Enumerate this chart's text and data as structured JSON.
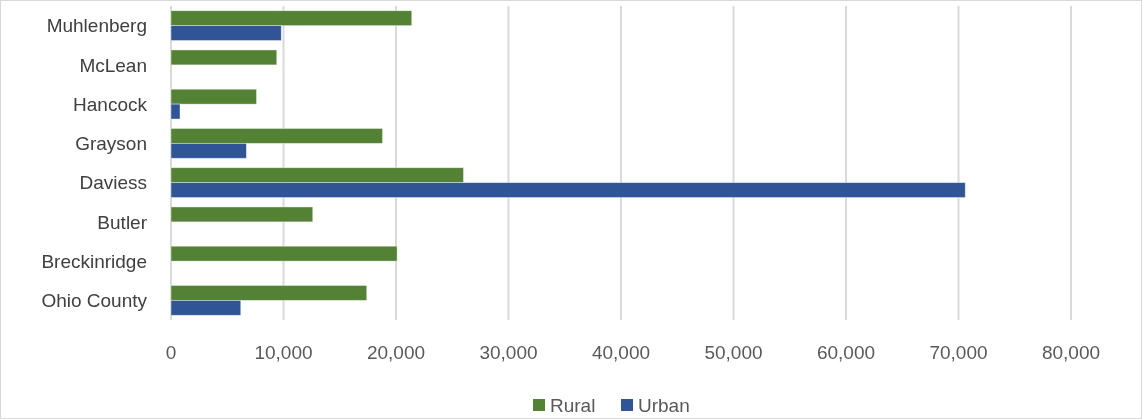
{
  "chart_data": {
    "type": "bar",
    "orientation": "horizontal",
    "categories": [
      "Muhlenberg",
      "McLean",
      "Hancock",
      "Grayson",
      "Daviess",
      "Butler",
      "Breckinridge",
      "Ohio County"
    ],
    "series": [
      {
        "name": "Rural",
        "color": "#548235",
        "values": [
          21400,
          9400,
          7600,
          18800,
          26000,
          12600,
          20100,
          17400
        ]
      },
      {
        "name": "Urban",
        "color": "#2f5597",
        "values": [
          9800,
          null,
          800,
          6700,
          70600,
          null,
          null,
          6200
        ]
      }
    ],
    "xlim": [
      0,
      80000
    ],
    "xticks": [
      0,
      {
        "value": 10000,
        "label": "10,000"
      },
      {
        "value": 20000,
        "label": "20,000"
      },
      {
        "value": 30000,
        "label": "30,000"
      },
      {
        "value": 40000,
        "label": "40,000"
      },
      {
        "value": 50000,
        "label": "50,000"
      },
      {
        "value": 60000,
        "label": "60,000"
      },
      {
        "value": 70000,
        "label": "70,000"
      },
      {
        "value": 80000,
        "label": "80,000"
      }
    ],
    "grid": "x",
    "legend": "bottom"
  }
}
